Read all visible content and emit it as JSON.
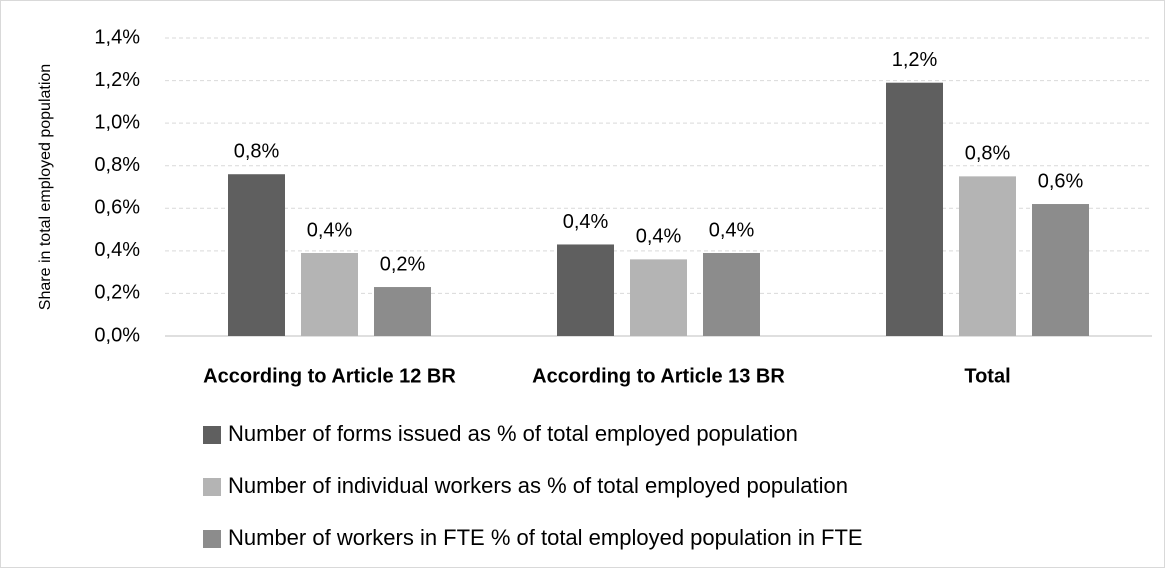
{
  "chart_data": {
    "type": "bar",
    "y_label": "Share in total employed population",
    "categories": [
      "According to Article 12 BR",
      "According to Article 13 BR",
      "Total"
    ],
    "series": [
      {
        "name": "Number of forms issued as % of total employed population",
        "color": "#5f5f5f",
        "values": [
          0.76,
          0.43,
          1.19
        ],
        "value_labels": [
          "0,8%",
          "0,4%",
          "1,2%"
        ]
      },
      {
        "name": "Number of individual workers as % of total employed population",
        "color": "#b4b4b4",
        "values": [
          0.39,
          0.36,
          0.75
        ],
        "value_labels": [
          "0,4%",
          "0,4%",
          "0,8%"
        ]
      },
      {
        "name": "Number of workers in FTE % of total employed population in FTE",
        "color": "#8c8c8c",
        "values": [
          0.23,
          0.39,
          0.62
        ],
        "value_labels": [
          "0,2%",
          "0,4%",
          "0,6%"
        ]
      }
    ],
    "ylim": [
      0,
      1.4
    ],
    "yticks": [
      {
        "value": 0,
        "label": "0,0%"
      },
      {
        "value": 0.2,
        "label": "0,2%"
      },
      {
        "value": 0.4,
        "label": "0,4%"
      },
      {
        "value": 0.6,
        "label": "0,6%"
      },
      {
        "value": 0.8,
        "label": "0,8%"
      },
      {
        "value": 1.0,
        "label": "1,0%"
      },
      {
        "value": 1.2,
        "label": "1,2%"
      },
      {
        "value": 1.4,
        "label": "1,4%"
      }
    ],
    "grid": true
  }
}
